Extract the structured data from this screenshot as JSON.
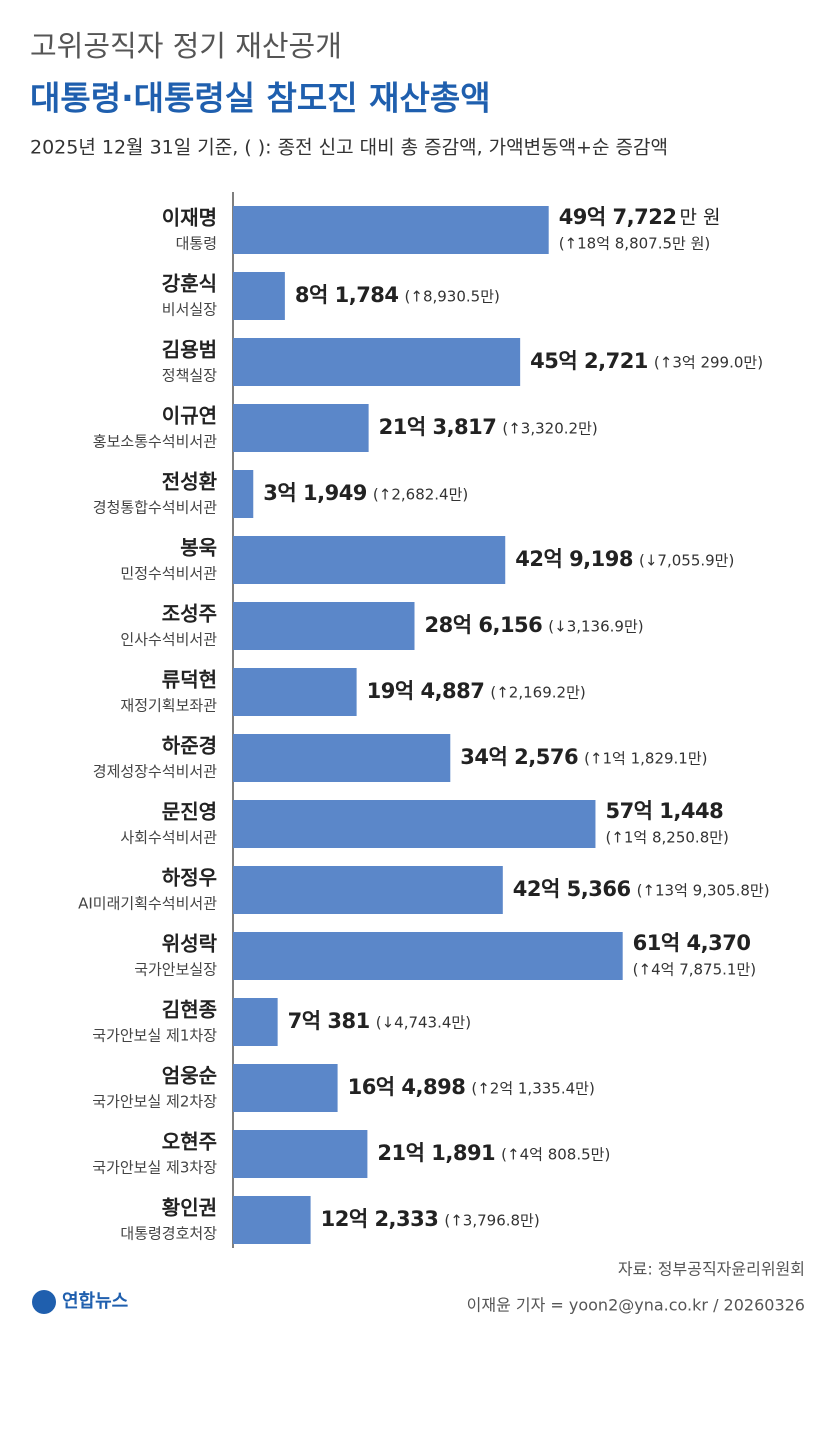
{
  "chart_data": {
    "type": "bar",
    "supertitle": "고위공직자 정기 재산공개",
    "title": "대통령·대통령실 참모진 재산총액",
    "subtitle": "2025년 12월 31일 기준, ( ): 종전 신고 대비 총 증감액, 가액변동액+순 증감액",
    "categories": [
      "이재명",
      "강훈식",
      "김용범",
      "이규연",
      "전성환",
      "봉욱",
      "조성주",
      "류덕현",
      "하준경",
      "문진영",
      "하정우",
      "위성락",
      "김현종",
      "엄웅순",
      "오현주",
      "황인권"
    ],
    "roles": [
      "대통령",
      "비서실장",
      "정책실장",
      "홍보소통수석비서관",
      "경청통합수석비서관",
      "민정수석비서관",
      "인사수석비서관",
      "재정기획보좌관",
      "경제성장수석비서관",
      "사회수석비서관",
      "AI미래기획수석비서관",
      "국가안보실장",
      "국가안보실 제1차장",
      "국가안보실 제2차장",
      "국가안보실 제3차장",
      "대통령경호처장"
    ],
    "values": [
      497722,
      81784,
      452721,
      213817,
      31949,
      429198,
      286156,
      194887,
      342576,
      571448,
      425366,
      614370,
      70381,
      164898,
      211891,
      122333
    ],
    "value_labels": [
      "49억 7,722",
      "8억 1,784",
      "45억 2,721",
      "21억 3,817",
      "3억 1,949",
      "42억 9,198",
      "28억 6,156",
      "19억 4,887",
      "34억 2,576",
      "57억 1,448",
      "42억 5,366",
      "61억 4,370",
      "7억 381",
      "16억 4,898",
      "21억 1,891",
      "12억 2,333"
    ],
    "unit_label": "만 원",
    "change_labels": [
      "(↑18억 8,807.5만 원)",
      "(↑8,930.5만)",
      "(↑3억 299.0만)",
      "(↑3,320.2만)",
      "(↑2,682.4만)",
      "(↓7,055.9만)",
      "(↓3,136.9만)",
      "(↑2,169.2만)",
      "(↑1억 1,829.1만)",
      "(↑1억 8,250.8만)",
      "(↑13억 9,305.8만)",
      "(↑4억 7,875.1만)",
      "(↓4,743.4만)",
      "(↑2억 1,335.4만)",
      "(↑4억 808.5만)",
      "(↑3,796.8만)"
    ],
    "color": "#5b87c9",
    "xlim": [
      0,
      700000
    ],
    "source": "자료: 정부공직자윤리위원회",
    "credit": "이재윤 기자 = yoon2@yna.co.kr / 20260326",
    "logo": "연합뉴스"
  }
}
